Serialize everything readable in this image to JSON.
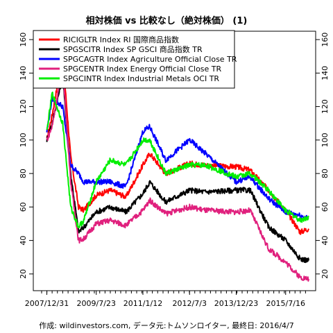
{
  "chart_data": {
    "type": "line",
    "title": "相対株価 vs 比較なし（絶対株価） (1)",
    "caption": "作成: wildinvestors.com, データ元:トムソンロイター, 最終日: 2016/4/7",
    "x_range": [
      "2007-11-01",
      "2016-04-07"
    ],
    "ylim": [
      10,
      165
    ],
    "y_ticks": [
      20,
      40,
      60,
      80,
      100,
      120,
      140,
      160
    ],
    "x_ticks": [
      {
        "date": "2007-12-31",
        "label": "2007/12/31"
      },
      {
        "date": "2009-07-23",
        "label": "2009/7/23"
      },
      {
        "date": "2011-01-12",
        "label": "2011/1/12"
      },
      {
        "date": "2012-07-03",
        "label": "2012/7/3"
      },
      {
        "date": "2013-12-23",
        "label": "2013/12/23"
      },
      {
        "date": "2015-07-16",
        "label": "2015/7/16"
      }
    ],
    "legend_placement": "top-left",
    "grid": false,
    "series": [
      {
        "name": "RICIGLTR Index RI 国際商品指数",
        "color": "#ff0000",
        "points": [
          [
            "2007-12-31",
            100
          ],
          [
            "2008-03-01",
            115
          ],
          [
            "2008-07-01",
            150
          ],
          [
            "2008-10-01",
            90
          ],
          [
            "2008-12-31",
            60
          ],
          [
            "2009-03-01",
            58
          ],
          [
            "2009-07-23",
            67
          ],
          [
            "2010-01-01",
            70
          ],
          [
            "2010-07-01",
            66
          ],
          [
            "2011-01-12",
            85
          ],
          [
            "2011-04-01",
            92
          ],
          [
            "2011-10-01",
            80
          ],
          [
            "2012-07-03",
            86
          ],
          [
            "2013-01-01",
            85
          ],
          [
            "2013-12-23",
            84
          ],
          [
            "2014-06-01",
            82
          ],
          [
            "2014-12-31",
            70
          ],
          [
            "2015-07-16",
            58
          ],
          [
            "2015-12-31",
            45
          ],
          [
            "2016-04-07",
            47
          ]
        ]
      },
      {
        "name": "SPGSCITR Index SP GSCI 商品指数 TR",
        "color": "#000000",
        "points": [
          [
            "2007-12-31",
            100
          ],
          [
            "2008-03-01",
            110
          ],
          [
            "2008-07-01",
            138
          ],
          [
            "2008-10-01",
            80
          ],
          [
            "2008-12-31",
            45
          ],
          [
            "2009-03-01",
            48
          ],
          [
            "2009-07-23",
            57
          ],
          [
            "2010-01-01",
            60
          ],
          [
            "2010-07-01",
            57
          ],
          [
            "2011-01-12",
            68
          ],
          [
            "2011-04-01",
            75
          ],
          [
            "2011-10-01",
            63
          ],
          [
            "2012-07-03",
            70
          ],
          [
            "2013-01-01",
            69
          ],
          [
            "2013-12-23",
            70
          ],
          [
            "2014-06-01",
            70
          ],
          [
            "2014-12-31",
            48
          ],
          [
            "2015-07-16",
            40
          ],
          [
            "2015-12-31",
            29
          ],
          [
            "2016-04-07",
            28
          ]
        ]
      },
      {
        "name": "SPGCAGTR Index Agriculture Official Close TR",
        "color": "#0000ff",
        "points": [
          [
            "2007-12-31",
            105
          ],
          [
            "2008-03-01",
            125
          ],
          [
            "2008-07-01",
            120
          ],
          [
            "2008-10-01",
            85
          ],
          [
            "2008-12-31",
            80
          ],
          [
            "2009-03-01",
            75
          ],
          [
            "2009-07-23",
            75
          ],
          [
            "2010-01-01",
            75
          ],
          [
            "2010-07-01",
            72
          ],
          [
            "2011-01-12",
            105
          ],
          [
            "2011-04-01",
            108
          ],
          [
            "2011-10-01",
            88
          ],
          [
            "2012-07-03",
            100
          ],
          [
            "2013-01-01",
            92
          ],
          [
            "2013-12-23",
            75
          ],
          [
            "2014-06-01",
            78
          ],
          [
            "2014-12-31",
            65
          ],
          [
            "2015-07-16",
            57
          ],
          [
            "2015-12-31",
            55
          ],
          [
            "2016-04-07",
            53
          ]
        ]
      },
      {
        "name": "SPGCENTR Index Energy Official Close TR",
        "color": "#e0207d",
        "points": [
          [
            "2007-12-31",
            100
          ],
          [
            "2008-03-01",
            108
          ],
          [
            "2008-07-01",
            145
          ],
          [
            "2008-10-01",
            75
          ],
          [
            "2008-12-31",
            40
          ],
          [
            "2009-03-01",
            41
          ],
          [
            "2009-07-23",
            50
          ],
          [
            "2010-01-01",
            52
          ],
          [
            "2010-07-01",
            49
          ],
          [
            "2011-01-12",
            58
          ],
          [
            "2011-04-01",
            64
          ],
          [
            "2011-10-01",
            56
          ],
          [
            "2012-07-03",
            60
          ],
          [
            "2013-01-01",
            58
          ],
          [
            "2013-12-23",
            57
          ],
          [
            "2014-06-01",
            58
          ],
          [
            "2014-12-31",
            35
          ],
          [
            "2015-07-16",
            27
          ],
          [
            "2015-12-31",
            18
          ],
          [
            "2016-04-07",
            17
          ]
        ]
      },
      {
        "name": "SPGCINTR Index Industrial Metals OCI TR",
        "color": "#00ee00",
        "points": [
          [
            "2007-12-31",
            105
          ],
          [
            "2008-03-01",
            128
          ],
          [
            "2008-07-01",
            110
          ],
          [
            "2008-10-01",
            60
          ],
          [
            "2008-12-31",
            48
          ],
          [
            "2009-03-01",
            52
          ],
          [
            "2009-07-23",
            75
          ],
          [
            "2010-01-01",
            88
          ],
          [
            "2010-07-01",
            85
          ],
          [
            "2011-01-12",
            100
          ],
          [
            "2011-04-01",
            100
          ],
          [
            "2011-10-01",
            80
          ],
          [
            "2012-07-03",
            85
          ],
          [
            "2013-01-01",
            85
          ],
          [
            "2013-12-23",
            78
          ],
          [
            "2014-06-01",
            80
          ],
          [
            "2014-12-31",
            70
          ],
          [
            "2015-07-16",
            58
          ],
          [
            "2015-12-31",
            52
          ],
          [
            "2016-04-07",
            54
          ]
        ]
      }
    ]
  }
}
